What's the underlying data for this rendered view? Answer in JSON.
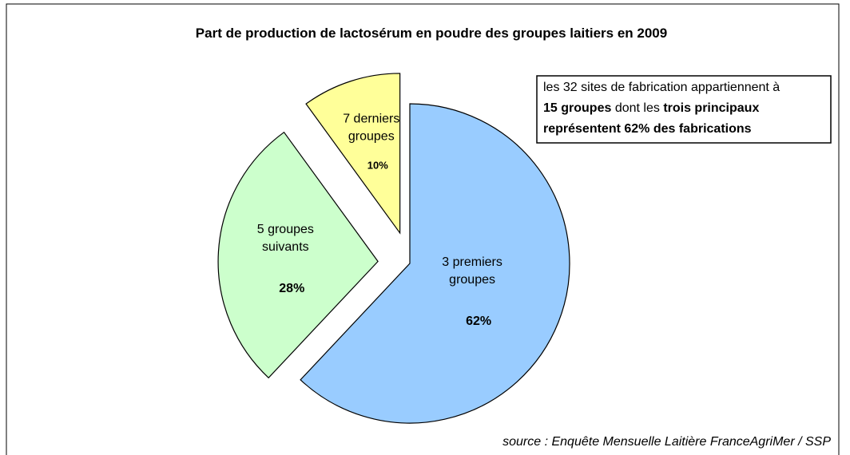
{
  "chart_data": {
    "type": "pie",
    "title": "Part de production de lactosérum en poudre des groupes laitiers en 2009",
    "categories": [
      "3 premiers groupes",
      "5 groupes suivants",
      "7 derniers groupes"
    ],
    "values": [
      62,
      28,
      10
    ],
    "value_labels": [
      "62%",
      "28%",
      "10%"
    ],
    "colors": [
      "#99ccff",
      "#ccffcc",
      "#ffff99"
    ],
    "annotation": [
      "les 32 sites de fabrication appartiennent à",
      "15 groupes",
      "dont les",
      "trois principaux",
      "représentent 62% des fabrications"
    ],
    "source": "source : Enquête Mensuelle Laitière FranceAgriMer / SSP"
  }
}
